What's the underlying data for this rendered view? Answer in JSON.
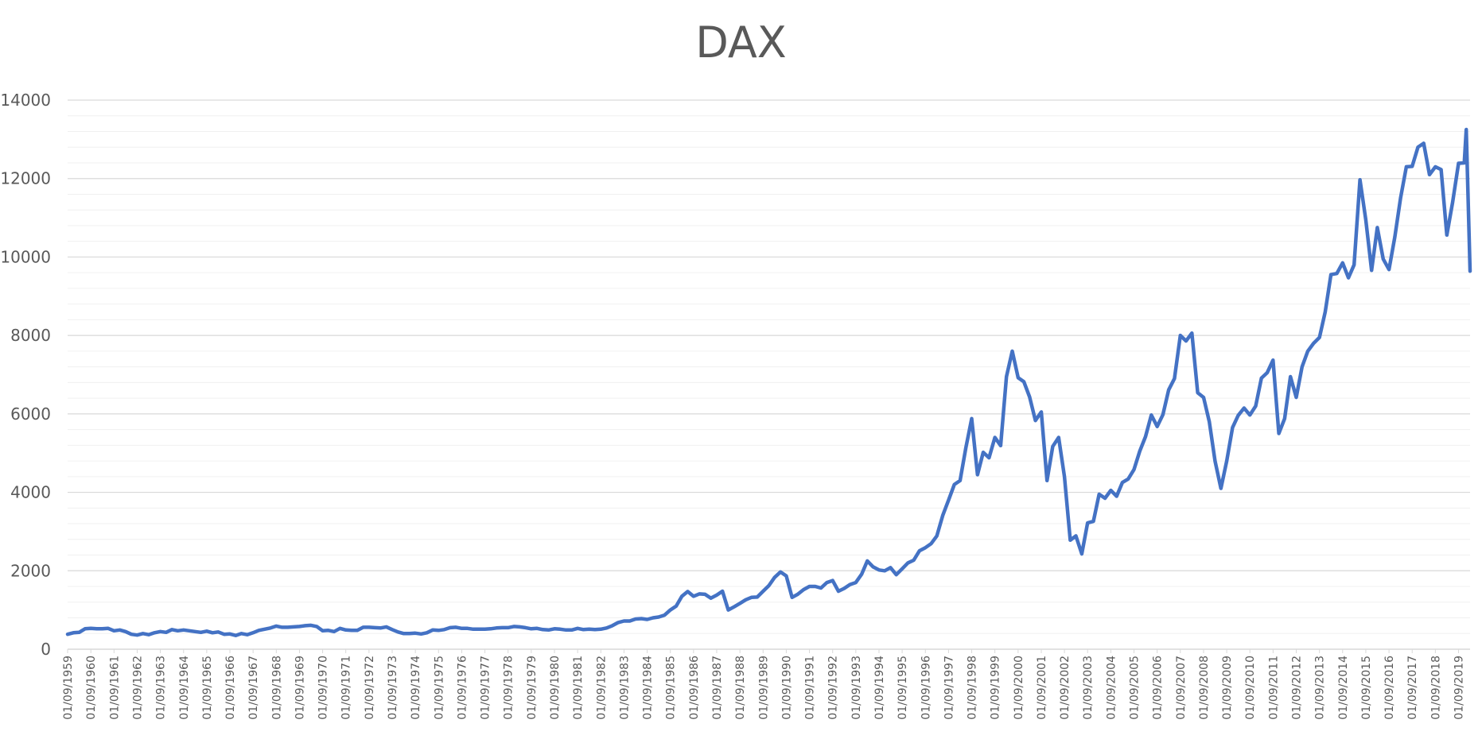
{
  "chart_data": {
    "type": "line",
    "title": "DAX",
    "xlabel": "",
    "ylabel": "",
    "ylim": [
      0,
      14000
    ],
    "yticks": [
      0,
      2000,
      4000,
      6000,
      8000,
      10000,
      12000,
      14000
    ],
    "major_grid_step": 2000,
    "minor_grid_step": 400,
    "line_color": "#4472C4",
    "grid_color": "#D9D9D9",
    "minor_grid_color": "#F0F0F0",
    "x_range": [
      "01/09/1959",
      "01/03/2020"
    ],
    "xticks": [
      "01/09/1959",
      "01/09/1960",
      "01/09/1961",
      "01/09/1962",
      "01/09/1963",
      "01/09/1964",
      "01/09/1965",
      "01/09/1966",
      "01/09/1967",
      "01/09/1968",
      "01/09/1969",
      "01/09/1970",
      "01/09/1971",
      "01/09/1972",
      "01/09/1973",
      "01/09/1974",
      "01/09/1975",
      "01/09/1976",
      "01/09/1977",
      "01/09/1978",
      "01/09/1979",
      "01/09/1980",
      "01/09/1981",
      "01/09/1982",
      "01/09/1983",
      "01/09/1984",
      "01/09/1985",
      "01/09/1986",
      "01/09/1987",
      "01/09/1988",
      "01/09/1989",
      "01/09/1990",
      "01/09/1991",
      "01/09/1992",
      "01/09/1993",
      "01/09/1994",
      "01/09/1995",
      "01/09/1996",
      "01/09/1997",
      "01/09/1998",
      "01/09/1999",
      "01/09/2000",
      "01/09/2001",
      "01/09/2002",
      "01/09/2003",
      "01/09/2004",
      "01/09/2005",
      "01/09/2006",
      "01/09/2007",
      "01/09/2008",
      "01/09/2009",
      "01/09/2010",
      "01/09/2011",
      "01/09/2012",
      "01/09/2013",
      "01/09/2014",
      "01/09/2015",
      "01/09/2016",
      "01/09/2017",
      "01/09/2018",
      "01/09/2019"
    ],
    "series": [
      {
        "name": "",
        "points": [
          [
            "1959-09-01",
            380
          ],
          [
            "1959-12-01",
            420
          ],
          [
            "1960-03-01",
            430
          ],
          [
            "1960-06-01",
            520
          ],
          [
            "1960-09-01",
            530
          ],
          [
            "1960-12-01",
            520
          ],
          [
            "1961-03-01",
            520
          ],
          [
            "1961-06-01",
            530
          ],
          [
            "1961-09-01",
            470
          ],
          [
            "1961-12-01",
            490
          ],
          [
            "1962-03-01",
            450
          ],
          [
            "1962-06-01",
            380
          ],
          [
            "1962-09-01",
            360
          ],
          [
            "1962-12-01",
            400
          ],
          [
            "1963-03-01",
            370
          ],
          [
            "1963-06-01",
            420
          ],
          [
            "1963-09-01",
            450
          ],
          [
            "1963-12-01",
            430
          ],
          [
            "1964-03-01",
            500
          ],
          [
            "1964-06-01",
            470
          ],
          [
            "1964-09-01",
            490
          ],
          [
            "1964-12-01",
            470
          ],
          [
            "1965-03-01",
            450
          ],
          [
            "1965-06-01",
            430
          ],
          [
            "1965-09-01",
            460
          ],
          [
            "1965-12-01",
            420
          ],
          [
            "1966-03-01",
            440
          ],
          [
            "1966-06-01",
            380
          ],
          [
            "1966-09-01",
            390
          ],
          [
            "1966-12-01",
            350
          ],
          [
            "1967-03-01",
            400
          ],
          [
            "1967-06-01",
            370
          ],
          [
            "1967-09-01",
            420
          ],
          [
            "1967-12-01",
            480
          ],
          [
            "1968-03-01",
            510
          ],
          [
            "1968-06-01",
            540
          ],
          [
            "1968-09-01",
            590
          ],
          [
            "1968-12-01",
            560
          ],
          [
            "1969-03-01",
            560
          ],
          [
            "1969-06-01",
            570
          ],
          [
            "1969-09-01",
            580
          ],
          [
            "1969-12-01",
            600
          ],
          [
            "1970-03-01",
            610
          ],
          [
            "1970-06-01",
            580
          ],
          [
            "1970-09-01",
            470
          ],
          [
            "1970-12-01",
            480
          ],
          [
            "1971-03-01",
            450
          ],
          [
            "1971-06-01",
            530
          ],
          [
            "1971-09-01",
            490
          ],
          [
            "1971-12-01",
            480
          ],
          [
            "1972-03-01",
            480
          ],
          [
            "1972-06-01",
            560
          ],
          [
            "1972-09-01",
            560
          ],
          [
            "1972-12-01",
            550
          ],
          [
            "1973-03-01",
            540
          ],
          [
            "1973-06-01",
            570
          ],
          [
            "1973-09-01",
            500
          ],
          [
            "1973-12-01",
            440
          ],
          [
            "1974-03-01",
            400
          ],
          [
            "1974-06-01",
            400
          ],
          [
            "1974-09-01",
            410
          ],
          [
            "1974-12-01",
            390
          ],
          [
            "1975-03-01",
            420
          ],
          [
            "1975-06-01",
            490
          ],
          [
            "1975-09-01",
            480
          ],
          [
            "1975-12-01",
            500
          ],
          [
            "1976-03-01",
            550
          ],
          [
            "1976-06-01",
            560
          ],
          [
            "1976-09-01",
            530
          ],
          [
            "1976-12-01",
            530
          ],
          [
            "1977-03-01",
            510
          ],
          [
            "1977-06-01",
            510
          ],
          [
            "1977-09-01",
            510
          ],
          [
            "1977-12-01",
            520
          ],
          [
            "1978-03-01",
            540
          ],
          [
            "1978-06-01",
            550
          ],
          [
            "1978-09-01",
            550
          ],
          [
            "1978-12-01",
            580
          ],
          [
            "1979-03-01",
            570
          ],
          [
            "1979-06-01",
            550
          ],
          [
            "1979-09-01",
            520
          ],
          [
            "1979-12-01",
            530
          ],
          [
            "1980-03-01",
            500
          ],
          [
            "1980-06-01",
            490
          ],
          [
            "1980-09-01",
            520
          ],
          [
            "1980-12-01",
            510
          ],
          [
            "1981-03-01",
            490
          ],
          [
            "1981-06-01",
            490
          ],
          [
            "1981-09-01",
            530
          ],
          [
            "1981-12-01",
            500
          ],
          [
            "1982-03-01",
            510
          ],
          [
            "1982-06-01",
            500
          ],
          [
            "1982-09-01",
            510
          ],
          [
            "1982-12-01",
            540
          ],
          [
            "1983-03-01",
            600
          ],
          [
            "1983-06-01",
            680
          ],
          [
            "1983-09-01",
            720
          ],
          [
            "1983-12-01",
            720
          ],
          [
            "1984-03-01",
            770
          ],
          [
            "1984-06-01",
            780
          ],
          [
            "1984-09-01",
            760
          ],
          [
            "1984-12-01",
            800
          ],
          [
            "1985-03-01",
            820
          ],
          [
            "1985-06-01",
            870
          ],
          [
            "1985-09-01",
            1000
          ],
          [
            "1985-12-01",
            1100
          ],
          [
            "1986-03-01",
            1350
          ],
          [
            "1986-06-01",
            1470
          ],
          [
            "1986-09-01",
            1350
          ],
          [
            "1986-12-01",
            1410
          ],
          [
            "1987-03-01",
            1400
          ],
          [
            "1987-06-01",
            1300
          ],
          [
            "1987-09-01",
            1380
          ],
          [
            "1987-12-01",
            1480
          ],
          [
            "1988-03-01",
            1000
          ],
          [
            "1988-06-01",
            1080
          ],
          [
            "1988-09-01",
            1170
          ],
          [
            "1988-12-01",
            1260
          ],
          [
            "1989-03-01",
            1320
          ],
          [
            "1989-06-01",
            1330
          ],
          [
            "1989-09-01",
            1480
          ],
          [
            "1989-12-01",
            1620
          ],
          [
            "1990-03-01",
            1830
          ],
          [
            "1990-06-01",
            1970
          ],
          [
            "1990-09-01",
            1870
          ],
          [
            "1990-12-01",
            1320
          ],
          [
            "1991-03-01",
            1400
          ],
          [
            "1991-06-01",
            1520
          ],
          [
            "1991-09-01",
            1600
          ],
          [
            "1991-12-01",
            1600
          ],
          [
            "1992-03-01",
            1560
          ],
          [
            "1992-06-01",
            1700
          ],
          [
            "1992-09-01",
            1750
          ],
          [
            "1992-12-01",
            1480
          ],
          [
            "1993-03-01",
            1550
          ],
          [
            "1993-06-01",
            1650
          ],
          [
            "1993-09-01",
            1700
          ],
          [
            "1993-12-01",
            1910
          ],
          [
            "1994-03-01",
            2250
          ],
          [
            "1994-06-01",
            2100
          ],
          [
            "1994-09-01",
            2020
          ],
          [
            "1994-12-01",
            2000
          ],
          [
            "1995-03-01",
            2080
          ],
          [
            "1995-06-01",
            1900
          ],
          [
            "1995-09-01",
            2050
          ],
          [
            "1995-12-01",
            2200
          ],
          [
            "1996-03-01",
            2270
          ],
          [
            "1996-06-01",
            2510
          ],
          [
            "1996-09-01",
            2590
          ],
          [
            "1996-12-01",
            2690
          ],
          [
            "1997-03-01",
            2890
          ],
          [
            "1997-06-01",
            3410
          ],
          [
            "1997-09-01",
            3800
          ],
          [
            "1997-12-01",
            4200
          ],
          [
            "1998-03-01",
            4300
          ],
          [
            "1998-06-01",
            5140
          ],
          [
            "1998-09-01",
            5880
          ],
          [
            "1998-12-01",
            4450
          ],
          [
            "1999-03-01",
            5020
          ],
          [
            "1999-06-01",
            4880
          ],
          [
            "1999-09-01",
            5400
          ],
          [
            "1999-12-01",
            5190
          ],
          [
            "2000-03-01",
            6950
          ],
          [
            "2000-06-01",
            7600
          ],
          [
            "2000-09-01",
            6920
          ],
          [
            "2000-12-01",
            6820
          ],
          [
            "2001-03-01",
            6430
          ],
          [
            "2001-06-01",
            5830
          ],
          [
            "2001-09-01",
            6050
          ],
          [
            "2001-12-01",
            4300
          ],
          [
            "2002-03-01",
            5170
          ],
          [
            "2002-06-01",
            5400
          ],
          [
            "2002-09-01",
            4400
          ],
          [
            "2002-12-01",
            2780
          ],
          [
            "2003-03-01",
            2890
          ],
          [
            "2003-06-01",
            2430
          ],
          [
            "2003-09-01",
            3220
          ],
          [
            "2003-12-01",
            3260
          ],
          [
            "2004-03-01",
            3950
          ],
          [
            "2004-06-01",
            3850
          ],
          [
            "2004-09-01",
            4050
          ],
          [
            "2004-12-01",
            3900
          ],
          [
            "2005-03-01",
            4250
          ],
          [
            "2005-06-01",
            4340
          ],
          [
            "2005-09-01",
            4580
          ],
          [
            "2005-12-01",
            5050
          ],
          [
            "2006-03-01",
            5420
          ],
          [
            "2006-06-01",
            5970
          ],
          [
            "2006-09-01",
            5680
          ],
          [
            "2006-12-01",
            5980
          ],
          [
            "2007-03-01",
            6610
          ],
          [
            "2007-06-01",
            6900
          ],
          [
            "2007-09-01",
            8000
          ],
          [
            "2007-12-01",
            7860
          ],
          [
            "2008-03-01",
            8060
          ],
          [
            "2008-06-01",
            6540
          ],
          [
            "2008-09-01",
            6420
          ],
          [
            "2008-12-01",
            5800
          ],
          [
            "2009-03-01",
            4800
          ],
          [
            "2009-06-01",
            4100
          ],
          [
            "2009-09-01",
            4800
          ],
          [
            "2009-12-01",
            5650
          ],
          [
            "2010-03-01",
            5960
          ],
          [
            "2010-06-01",
            6150
          ],
          [
            "2010-09-01",
            5970
          ],
          [
            "2010-12-01",
            6200
          ],
          [
            "2011-03-01",
            6910
          ],
          [
            "2011-06-01",
            7050
          ],
          [
            "2011-09-01",
            7370
          ],
          [
            "2011-12-01",
            5500
          ],
          [
            "2012-03-01",
            5880
          ],
          [
            "2012-06-01",
            6950
          ],
          [
            "2012-09-01",
            6420
          ],
          [
            "2012-12-01",
            7200
          ],
          [
            "2013-03-01",
            7600
          ],
          [
            "2013-06-01",
            7800
          ],
          [
            "2013-09-01",
            7950
          ],
          [
            "2013-12-01",
            8600
          ],
          [
            "2014-03-01",
            9550
          ],
          [
            "2014-06-01",
            9580
          ],
          [
            "2014-09-01",
            9850
          ],
          [
            "2014-12-01",
            9470
          ],
          [
            "2015-03-01",
            9800
          ],
          [
            "2015-06-01",
            11970
          ],
          [
            "2015-09-01",
            10950
          ],
          [
            "2015-12-01",
            9660
          ],
          [
            "2016-03-01",
            10750
          ],
          [
            "2016-06-01",
            9950
          ],
          [
            "2016-09-01",
            9680
          ],
          [
            "2016-12-01",
            10510
          ],
          [
            "2017-03-01",
            11500
          ],
          [
            "2017-06-01",
            12300
          ],
          [
            "2017-09-01",
            12310
          ],
          [
            "2017-12-01",
            12800
          ],
          [
            "2018-03-01",
            12900
          ],
          [
            "2018-06-01",
            12100
          ],
          [
            "2018-09-01",
            12300
          ],
          [
            "2018-12-01",
            12230
          ],
          [
            "2019-03-01",
            10560
          ],
          [
            "2019-06-01",
            11400
          ],
          [
            "2019-09-01",
            12390
          ],
          [
            "2019-12-01",
            12400
          ],
          [
            "2020-01-01",
            13250
          ],
          [
            "2020-03-01",
            9640
          ]
        ]
      }
    ]
  }
}
